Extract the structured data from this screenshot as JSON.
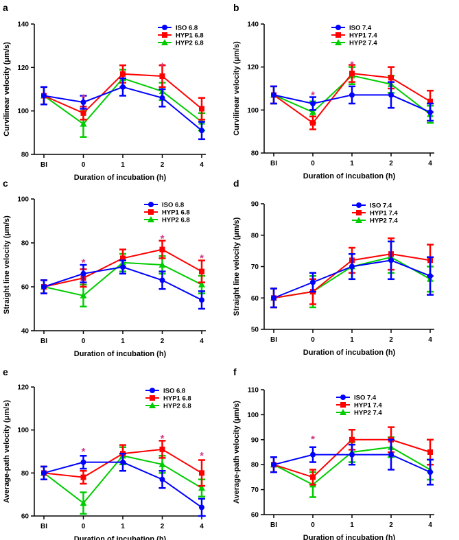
{
  "colors": {
    "ISO": "#0000ff",
    "HYP1": "#ff0000",
    "HYP2": "#00cc00",
    "star": "#d63384"
  },
  "chart_data": [
    {
      "panel": "a",
      "type": "line",
      "xlabel": "Duration of incubation (h)",
      "ylabel": "Curvilinear velocity  (μm/s)",
      "categories": [
        "BI",
        "0",
        "1",
        "2",
        "4"
      ],
      "ylim": [
        80,
        140
      ],
      "yticks": [
        80,
        100,
        120,
        140
      ],
      "series": [
        {
          "name": "ISO 6.8",
          "key": "ISO",
          "values": [
            107,
            104,
            111,
            106,
            91
          ],
          "errors": [
            4,
            3,
            4,
            4,
            4
          ]
        },
        {
          "name": "HYP1 6.8",
          "key": "HYP1",
          "values": [
            107,
            99,
            117,
            116,
            101
          ],
          "errors": [
            4,
            3,
            4,
            5,
            5
          ]
        },
        {
          "name": "HYP2 6.8",
          "key": "HYP2",
          "values": [
            107,
            94,
            115,
            109,
            95
          ],
          "errors": [
            4,
            6,
            4,
            4,
            4
          ]
        }
      ],
      "annotations": [
        {
          "category": "0",
          "text": "*",
          "y": 107
        },
        {
          "category": "2",
          "text": "*",
          "y": 121.5
        }
      ]
    },
    {
      "panel": "b",
      "type": "line",
      "xlabel": "Duration of incubation (h)",
      "ylabel": "Curvilinear velocity  (μm/s)",
      "categories": [
        "BI",
        "0",
        "1",
        "2",
        "4"
      ],
      "ylim": [
        80,
        140
      ],
      "yticks": [
        80,
        100,
        120,
        140
      ],
      "series": [
        {
          "name": "ISO 7.4",
          "key": "ISO",
          "values": [
            107,
            103,
            107,
            107,
            99
          ],
          "errors": [
            4,
            3,
            4,
            6,
            4
          ]
        },
        {
          "name": "HYP1 7.4",
          "key": "HYP1",
          "values": [
            107,
            94,
            117,
            115,
            104
          ],
          "errors": [
            4,
            3,
            4,
            5,
            5
          ]
        },
        {
          "name": "HYP2 7.4",
          "key": "HYP2",
          "values": [
            107,
            99,
            116,
            112,
            98
          ],
          "errors": [
            4,
            5,
            4,
            4,
            4
          ]
        }
      ],
      "annotations": [
        {
          "category": "0",
          "text": "*",
          "y": 108
        },
        {
          "category": "1",
          "text": "*",
          "y": 122
        }
      ]
    },
    {
      "panel": "c",
      "type": "line",
      "xlabel": "Duration of incubation (h)",
      "ylabel": "Straight line velocity (μm/s)",
      "categories": [
        "BI",
        "0",
        "1",
        "2",
        "4"
      ],
      "ylim": [
        40,
        100
      ],
      "yticks": [
        40,
        60,
        80,
        100
      ],
      "series": [
        {
          "name": "ISO 6.8",
          "key": "ISO",
          "values": [
            60,
            66,
            69,
            63,
            54
          ],
          "errors": [
            3,
            4,
            3,
            4,
            4
          ]
        },
        {
          "name": "HYP1 6.8",
          "key": "HYP1",
          "values": [
            60,
            64,
            73,
            77,
            67
          ],
          "errors": [
            3,
            4,
            4,
            4,
            5
          ]
        },
        {
          "name": "HYP2 6.8",
          "key": "HYP2",
          "values": [
            60,
            56,
            71,
            70,
            61
          ],
          "errors": [
            3,
            5,
            4,
            4,
            4
          ]
        }
      ],
      "annotations": [
        {
          "category": "0",
          "text": "*",
          "y": 72
        },
        {
          "category": "2",
          "text": "*",
          "y": 83
        },
        {
          "category": "4",
          "text": "*",
          "y": 74
        }
      ]
    },
    {
      "panel": "d",
      "type": "line",
      "xlabel": "Duration of incubation (h)",
      "ylabel": "Straight line velocity (μm/s)",
      "categories": [
        "BI",
        "0",
        "1",
        "2",
        "4"
      ],
      "ylim": [
        50,
        90
      ],
      "yticks": [
        50,
        60,
        70,
        80,
        90
      ],
      "series": [
        {
          "name": "ISO 7.4",
          "key": "ISO",
          "values": [
            60,
            65,
            70,
            72,
            67
          ],
          "errors": [
            3,
            3,
            4,
            6,
            6
          ]
        },
        {
          "name": "HYP1 7.4",
          "key": "HYP1",
          "values": [
            60,
            62,
            72,
            74,
            72
          ],
          "errors": [
            3,
            4,
            4,
            5,
            5
          ]
        },
        {
          "name": "HYP2 7.4",
          "key": "HYP2",
          "values": [
            60,
            62,
            70,
            73,
            66
          ],
          "errors": [
            3,
            5,
            4,
            5,
            4
          ]
        }
      ],
      "annotations": []
    },
    {
      "panel": "e",
      "type": "line",
      "xlabel": "Duration of incubation (h)",
      "ylabel": "Average-path velocity (μm/s)",
      "categories": [
        "BI",
        "0",
        "1",
        "2",
        "4"
      ],
      "ylim": [
        60,
        120
      ],
      "yticks": [
        60,
        80,
        100,
        120
      ],
      "series": [
        {
          "name": "ISO 6.8",
          "key": "ISO",
          "values": [
            80,
            85,
            85,
            77,
            64
          ],
          "errors": [
            3,
            3,
            4,
            4,
            4
          ]
        },
        {
          "name": "HYP1 6.8",
          "key": "HYP1",
          "values": [
            80,
            78,
            89,
            91,
            80
          ],
          "errors": [
            3,
            3,
            4,
            4,
            6
          ]
        },
        {
          "name": "HYP2 6.8",
          "key": "HYP2",
          "values": [
            80,
            66,
            88,
            84,
            73
          ],
          "errors": [
            3,
            5,
            4,
            4,
            4
          ]
        }
      ],
      "annotations": [
        {
          "category": "0",
          "text": "*",
          "y": 91
        },
        {
          "category": "2",
          "text": "*",
          "y": 97
        },
        {
          "category": "4",
          "text": "*",
          "y": 89
        }
      ]
    },
    {
      "panel": "f",
      "type": "line",
      "xlabel": "Duration of incubation (h)",
      "ylabel": "Average-path velocity (μm/s)",
      "categories": [
        "BI",
        "0",
        "1",
        "2",
        "4"
      ],
      "ylim": [
        60,
        110
      ],
      "yticks": [
        60,
        70,
        80,
        90,
        100,
        110
      ],
      "series": [
        {
          "name": "ISO 7.4",
          "key": "ISO",
          "values": [
            80,
            84,
            84,
            84,
            77
          ],
          "errors": [
            3,
            3,
            4,
            6,
            5
          ]
        },
        {
          "name": "HYP1 7.4",
          "key": "HYP1",
          "values": [
            80,
            75,
            90,
            90,
            85
          ],
          "errors": [
            3,
            3,
            4,
            5,
            5
          ]
        },
        {
          "name": "HYP2 7.4",
          "key": "HYP2",
          "values": [
            80,
            72,
            85,
            87,
            78
          ],
          "errors": [
            3,
            5,
            4,
            4,
            4
          ]
        }
      ],
      "annotations": [
        {
          "category": "0",
          "text": "*",
          "y": 91
        }
      ]
    }
  ]
}
